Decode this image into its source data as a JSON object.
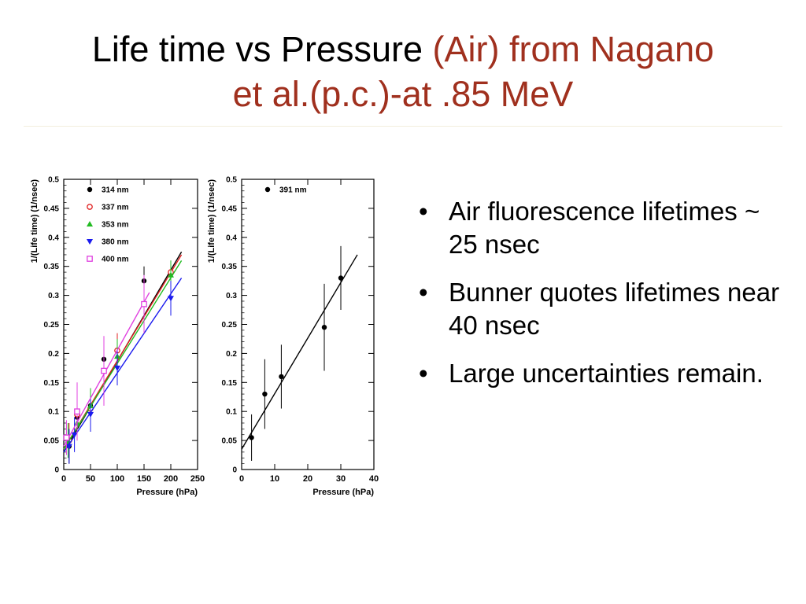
{
  "title": {
    "main": "Life time vs Pressure ",
    "accent_line1": "(Air) from Nagano",
    "accent_line2": "et al.(p.c.)-at .85 MeV"
  },
  "colors": {
    "accent": "#a0301e",
    "text": "#000000"
  },
  "bullets": [
    "Air fluorescence lifetimes ~ 25 nsec",
    "Bunner quotes lifetimes near 40 nsec",
    "Large uncertainties remain."
  ],
  "chart_data": [
    {
      "type": "scatter",
      "xlabel": "Pressure (hPa)",
      "ylabel": "1/(Life time) (1/nsec)",
      "xlim": [
        0,
        250
      ],
      "ylim": [
        0,
        0.5
      ],
      "xticks": [
        "0",
        "50",
        "100",
        "150",
        "200",
        "250"
      ],
      "yticks": [
        "0",
        "0.05",
        "0.1",
        "0.15",
        "0.2",
        "0.25",
        "0.3",
        "0.35",
        "0.4",
        "0.45",
        "0.5"
      ],
      "legend": "top-left",
      "series": [
        {
          "name": "314 nm",
          "marker": "filled-circle",
          "color": "#000000",
          "points": [
            [
              10,
              0.04
            ],
            [
              25,
              0.09
            ],
            [
              50,
              0.11
            ],
            [
              75,
              0.19
            ],
            [
              150,
              0.325
            ],
            [
              200,
              0.34
            ]
          ],
          "errors": [
            0.03,
            0.03,
            0.03,
            0.03,
            0.025,
            0.02
          ],
          "fit": [
            [
              0,
              0.03
            ],
            [
              220,
              0.375
            ]
          ]
        },
        {
          "name": "337 nm",
          "marker": "open-circle",
          "color": "#e02020",
          "points": [
            [
              10,
              0.05
            ],
            [
              25,
              0.095
            ],
            [
              50,
              0.105
            ],
            [
              100,
              0.205
            ],
            [
              200,
              0.34
            ]
          ],
          "errors": [
            0.03,
            0.03,
            0.03,
            0.03,
            0.02
          ],
          "fit": [
            [
              0,
              0.035
            ],
            [
              220,
              0.37
            ]
          ]
        },
        {
          "name": "353 nm",
          "marker": "filled-triangle-up",
          "color": "#22bb22",
          "points": [
            [
              8,
              0.05
            ],
            [
              25,
              0.08
            ],
            [
              50,
              0.11
            ],
            [
              100,
              0.195
            ],
            [
              200,
              0.335
            ]
          ],
          "errors": [
            0.03,
            0.03,
            0.03,
            0.03,
            0.025
          ],
          "fit": [
            [
              0,
              0.035
            ],
            [
              220,
              0.36
            ]
          ]
        },
        {
          "name": "380 nm",
          "marker": "filled-triangle-down",
          "color": "#1a1aee",
          "points": [
            [
              10,
              0.04
            ],
            [
              20,
              0.06
            ],
            [
              50,
              0.095
            ],
            [
              100,
              0.175
            ],
            [
              200,
              0.295
            ]
          ],
          "errors": [
            0.03,
            0.03,
            0.03,
            0.03,
            0.03
          ],
          "fit": [
            [
              0,
              0.03
            ],
            [
              220,
              0.33
            ]
          ]
        },
        {
          "name": "400 nm",
          "marker": "open-square",
          "color": "#e040e0",
          "points": [
            [
              5,
              0.055
            ],
            [
              25,
              0.1
            ],
            [
              75,
              0.17
            ],
            [
              150,
              0.285
            ]
          ],
          "errors": [
            0.03,
            0.05,
            0.06,
            0.05
          ],
          "fit": [
            [
              0,
              0.04
            ],
            [
              160,
              0.305
            ]
          ]
        }
      ]
    },
    {
      "type": "scatter",
      "xlabel": "Pressure (hPa)",
      "ylabel": "1/(Life time) (1/nsec)",
      "xlim": [
        0,
        40
      ],
      "ylim": [
        0,
        0.5
      ],
      "xticks": [
        "0",
        "10",
        "20",
        "30",
        "40"
      ],
      "yticks": [
        "0",
        "0.05",
        "0.1",
        "0.15",
        "0.2",
        "0.25",
        "0.3",
        "0.35",
        "0.4",
        "0.45",
        "0.5"
      ],
      "legend": "top-left",
      "series": [
        {
          "name": "391 nm",
          "marker": "filled-circle",
          "color": "#000000",
          "points": [
            [
              3,
              0.055
            ],
            [
              7,
              0.13
            ],
            [
              12,
              0.16
            ],
            [
              25,
              0.245
            ],
            [
              30,
              0.33
            ]
          ],
          "errors": [
            0.04,
            0.06,
            0.055,
            0.075,
            0.055
          ],
          "fit": [
            [
              0,
              0.035
            ],
            [
              35,
              0.37
            ]
          ]
        }
      ]
    }
  ]
}
